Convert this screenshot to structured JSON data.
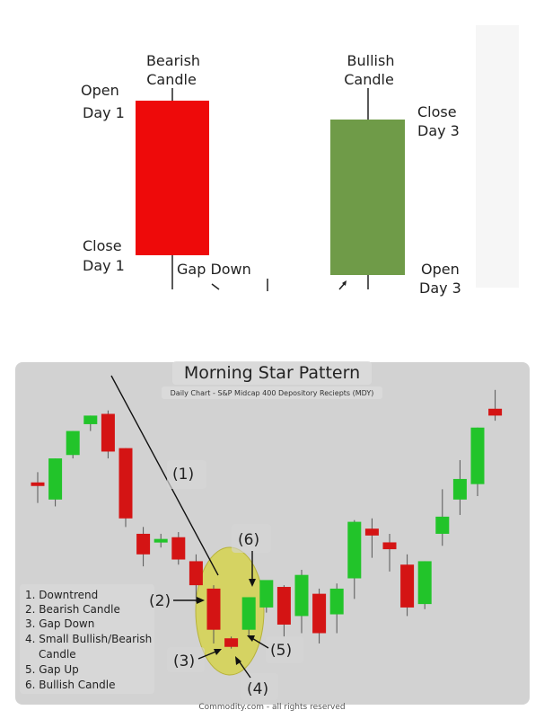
{
  "colors": {
    "bearish": "#ee0a0a",
    "bullish": "#6f9b48",
    "chart_bg": "#d2d2d2",
    "chart_red": "#d41414",
    "chart_green": "#22c42a",
    "highlight": "#d6d34f",
    "text": "#1a1a1a"
  },
  "diagram": {
    "bearish_label": [
      "Bearish",
      "Candle"
    ],
    "bullish_label": [
      "Bullish",
      "Candle"
    ],
    "open_day1": [
      "Open",
      "Day 1"
    ],
    "close_day1": [
      "Close",
      "Day 1"
    ],
    "close_day3": [
      "Close",
      "Day 3"
    ],
    "open_day3": [
      "Open",
      "Day 3"
    ],
    "gap_down": "Gap Down"
  },
  "chart_data": {
    "type": "candlestick",
    "title": "Morning Star Pattern",
    "subtitle": "Daily Chart - S&P Midcap 400 Depository Reciepts (MDY)",
    "footer": "Commodity.com - all rights reserved",
    "legend": [
      "1. Downtrend",
      "2. Bearish Candle",
      "3. Gap Down",
      "4. Small Bullish/Bearish",
      "Candle",
      "5. Gap Up",
      "6. Bullish Candle"
    ],
    "annotations": [
      "(1)",
      "(2)",
      "(3)",
      "(4)",
      "(5)",
      "(6)"
    ],
    "candles": [
      {
        "o": 52.0,
        "h": 55.0,
        "l": 46.0,
        "c": 51.0
      },
      {
        "o": 47.0,
        "h": 59.0,
        "l": 45.0,
        "c": 59.0
      },
      {
        "o": 60.0,
        "h": 67.0,
        "l": 59.0,
        "c": 67.0
      },
      {
        "o": 69.0,
        "h": 71.5,
        "l": 67.0,
        "c": 71.5
      },
      {
        "o": 72.0,
        "h": 73.0,
        "l": 59.0,
        "c": 61.0
      },
      {
        "o": 62.0,
        "h": 62.0,
        "l": 39.0,
        "c": 41.5
      },
      {
        "o": 37.0,
        "h": 39.0,
        "l": 27.5,
        "c": 31.0
      },
      {
        "o": 35.0,
        "h": 37.0,
        "l": 33.0,
        "c": 35.5
      },
      {
        "o": 36.0,
        "h": 37.5,
        "l": 28.0,
        "c": 29.5
      },
      {
        "o": 29.0,
        "h": 31.0,
        "l": 17.0,
        "c": 22.0
      },
      {
        "o": 21.0,
        "h": 22.0,
        "l": 5.0,
        "c": 9.0
      },
      {
        "o": 6.5,
        "h": 7.0,
        "l": 3.5,
        "c": 4.0
      },
      {
        "o": 9.0,
        "h": 18.5,
        "l": 7.0,
        "c": 18.5
      },
      {
        "o": 15.5,
        "h": 23.0,
        "l": 14.0,
        "c": 23.5
      },
      {
        "o": 21.5,
        "h": 22.0,
        "l": 7.0,
        "c": 10.5
      },
      {
        "o": 13.0,
        "h": 26.5,
        "l": 8.0,
        "c": 25.0
      },
      {
        "o": 19.5,
        "h": 21.0,
        "l": 5.0,
        "c": 8.0
      },
      {
        "o": 13.5,
        "h": 22.5,
        "l": 8.0,
        "c": 21.0
      },
      {
        "o": 24.0,
        "h": 41.0,
        "l": 18.0,
        "c": 40.5
      },
      {
        "o": 38.5,
        "h": 41.5,
        "l": 30.0,
        "c": 36.5
      },
      {
        "o": 34.5,
        "h": 37.0,
        "l": 26.0,
        "c": 32.5
      },
      {
        "o": 28.0,
        "h": 31.0,
        "l": 13.0,
        "c": 15.5
      },
      {
        "o": 16.5,
        "h": 29.0,
        "l": 15.0,
        "c": 29.0
      },
      {
        "o": 37.0,
        "h": 50.0,
        "l": 33.5,
        "c": 42.0
      },
      {
        "o": 47.0,
        "h": 58.5,
        "l": 42.5,
        "c": 53.0
      },
      {
        "o": 51.5,
        "h": 68.0,
        "l": 48.0,
        "c": 68.0
      },
      {
        "o": 73.5,
        "h": 79.0,
        "l": 70.0,
        "c": 71.5
      }
    ],
    "ylim": [
      0,
      80
    ],
    "grid": false
  }
}
